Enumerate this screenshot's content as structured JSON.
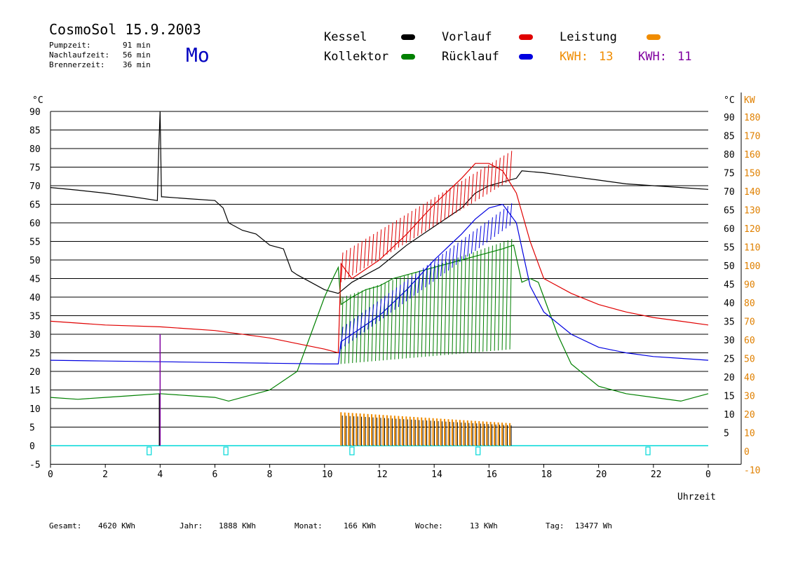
{
  "header": {
    "title": "CosmoSol 15.9.2003",
    "day": "Mo",
    "stats": [
      {
        "label": "Pumpzeit:",
        "value": "91 min"
      },
      {
        "label": "Nachlaufzeit:",
        "value": "56 min"
      },
      {
        "label": "Brennerzeit:",
        "value": "36 min"
      }
    ]
  },
  "legend": [
    {
      "label": "Kessel",
      "color": "#000000"
    },
    {
      "label": "Kollektor",
      "color": "#008000"
    },
    {
      "label": "Vorlauf",
      "color": "#e00000"
    },
    {
      "label": "Rücklauf",
      "color": "#0000e0"
    },
    {
      "label": "Leistung",
      "color": "#f08c00"
    }
  ],
  "kwh": [
    {
      "label": "KWH:",
      "value": "13",
      "color": "#f08c00"
    },
    {
      "label": "KWH:",
      "value": "11",
      "color": "#8000a0"
    }
  ],
  "footer": [
    {
      "label": "Gesamt:",
      "value": "4620 KWh"
    },
    {
      "label": "Jahr:",
      "value": "1888 KWh"
    },
    {
      "label": "Monat:",
      "value": "166 KWh"
    },
    {
      "label": "Woche:",
      "value": "13 KWh"
    },
    {
      "label": "Tag:",
      "value": "13477 Wh"
    }
  ],
  "colors": {
    "cyan": "#00d8d8",
    "axis_right_kw": "#e08000"
  },
  "chart_data": {
    "type": "line",
    "xlabel": "Uhrzeit",
    "left_unit": "°C",
    "right_unit_1": "°C",
    "right_unit_2": "KW",
    "xlim": [
      0,
      24
    ],
    "ylim": [
      -5,
      90
    ],
    "x_ticks": [
      "0",
      "2",
      "4",
      "6",
      "8",
      "10",
      "12",
      "14",
      "16",
      "18",
      "20",
      "22",
      "0"
    ],
    "y_ticks_left": [
      "-5",
      "0",
      "5",
      "10",
      "15",
      "20",
      "25",
      "30",
      "35",
      "40",
      "45",
      "50",
      "55",
      "60",
      "65",
      "70",
      "75",
      "80",
      "85",
      "90"
    ],
    "y_ticks_right_c": [
      "5",
      "10",
      "15",
      "20",
      "25",
      "30",
      "35",
      "40",
      "45",
      "50",
      "55",
      "60",
      "65",
      "70",
      "75",
      "80",
      "85",
      "90"
    ],
    "y_ticks_right_kw": [
      "-10",
      "0",
      "10",
      "20",
      "30",
      "40",
      "50",
      "60",
      "70",
      "80",
      "90",
      "100",
      "110",
      "120",
      "130",
      "140",
      "150",
      "160",
      "170",
      "180"
    ],
    "grid": true,
    "series": [
      {
        "name": "Kessel",
        "color": "#000000",
        "x": [
          0,
          1,
          2,
          3,
          3.9,
          3.95,
          4.0,
          4.05,
          4.1,
          5,
          6,
          6.3,
          6.5,
          7,
          7.5,
          8,
          8.5,
          8.8,
          9,
          9.5,
          10,
          10.5,
          11,
          12,
          13,
          14,
          15,
          15.5,
          16,
          16.5,
          17,
          17.2,
          18,
          19,
          20,
          21,
          22,
          23,
          24
        ],
        "y": [
          69.5,
          68.8,
          68,
          67,
          66,
          80,
          90,
          67,
          67,
          66.5,
          66,
          64,
          60,
          58,
          57,
          54,
          53,
          47,
          46,
          44,
          42,
          41,
          44,
          48,
          54,
          59,
          64,
          68,
          70,
          71,
          72,
          74,
          73.5,
          72.5,
          71.5,
          70.5,
          70,
          69.5,
          69
        ]
      },
      {
        "name": "Kollektor",
        "color": "#008000",
        "x": [
          0,
          1,
          2,
          3,
          4,
          5,
          6,
          6.5,
          7,
          8,
          9,
          9.5,
          10,
          10.3,
          10.5,
          10.6,
          11,
          11.5,
          12,
          12.5,
          13,
          13.5,
          14,
          14.5,
          15,
          15.5,
          16,
          16.5,
          16.9,
          17.2,
          17.5,
          17.8,
          18,
          18.5,
          19,
          20,
          21,
          22,
          23,
          24
        ],
        "y": [
          13,
          12.5,
          13,
          13.5,
          14,
          13.5,
          13,
          12,
          13,
          15,
          20,
          30,
          40,
          45,
          48,
          38,
          40,
          42,
          43,
          45,
          46,
          47,
          48,
          49,
          50,
          51,
          52,
          53,
          54,
          44,
          45,
          44,
          40,
          30,
          22,
          16,
          14,
          13,
          12,
          14
        ]
      },
      {
        "name": "Vorlauf",
        "color": "#e00000",
        "x": [
          0,
          2,
          4,
          6,
          8,
          9,
          10,
          10.5,
          10.6,
          11,
          12,
          13,
          14,
          15,
          15.5,
          16,
          16.5,
          17,
          17.5,
          18,
          19,
          20,
          21,
          22,
          23,
          24
        ],
        "y": [
          33.5,
          32.5,
          32,
          31,
          29,
          27.5,
          26,
          25,
          49,
          45,
          50,
          57,
          65,
          72,
          76,
          76,
          74,
          68,
          55,
          45,
          41,
          38,
          36,
          34.5,
          33.5,
          32.5
        ]
      },
      {
        "name": "Rücklauf",
        "color": "#0000e0",
        "x": [
          0,
          2,
          4,
          6,
          8,
          10,
          10.5,
          10.6,
          11,
          12,
          13,
          14,
          15,
          15.5,
          16,
          16.5,
          17,
          17.5,
          18,
          19,
          20,
          21,
          22,
          23,
          24
        ],
        "y": [
          23,
          22.8,
          22.6,
          22.4,
          22.2,
          22,
          22,
          28,
          30,
          35,
          42,
          50,
          57,
          61,
          64,
          65,
          60,
          43,
          36,
          30,
          26.5,
          25,
          24,
          23.5,
          23
        ]
      }
    ]
  }
}
